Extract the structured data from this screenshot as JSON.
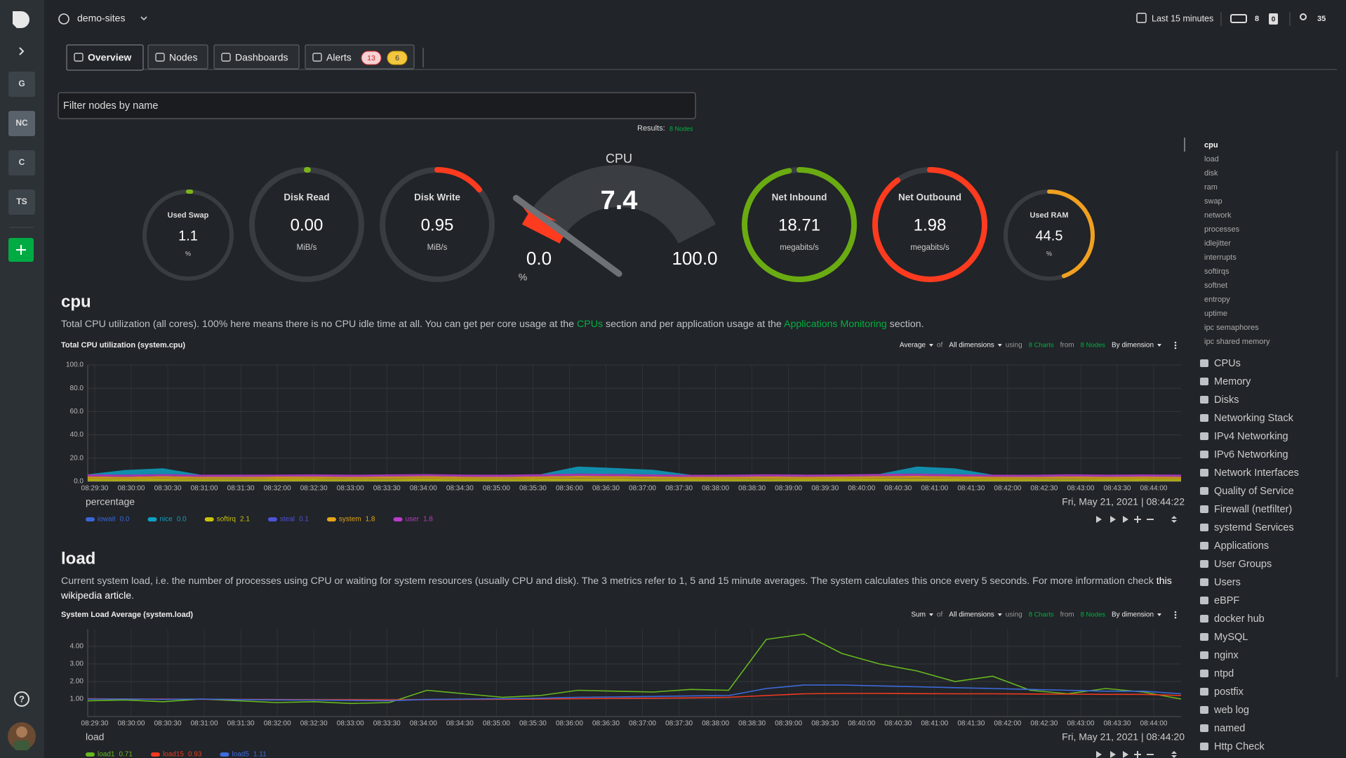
{
  "sidebar": {
    "spaces": [
      "G",
      "NC",
      "C",
      "TS"
    ],
    "help": "?"
  },
  "topbar": {
    "space": "demo-sites",
    "time_range": "Last 15 minutes",
    "nodes_count": "8",
    "alerts_count": "0",
    "users_count": "35"
  },
  "tabs": [
    {
      "label": "Overview"
    },
    {
      "label": "Nodes"
    },
    {
      "label": "Dashboards"
    },
    {
      "label": "Alerts",
      "badges": [
        "13",
        "6"
      ]
    }
  ],
  "filter": {
    "placeholder": "Filter nodes by name",
    "results_label": "Results:",
    "results_value": "8 Nodes"
  },
  "gauges": [
    {
      "title": "Used Swap",
      "value": "1.1",
      "unit": "%",
      "fill": 0.011,
      "color": "#7cb518"
    },
    {
      "title": "Disk Read",
      "value": "0.00",
      "unit": "MiB/s",
      "fill": 0.004,
      "color": "#7cb518"
    },
    {
      "title": "Disk Write",
      "value": "0.95",
      "unit": "MiB/s",
      "fill": 0.14,
      "color": "#ff3b1f"
    },
    {
      "title": "Net Inbound",
      "value": "18.71",
      "unit": "megabits/s",
      "fill": 0.97,
      "color": "#6aab12"
    },
    {
      "title": "Net Outbound",
      "value": "1.98",
      "unit": "megabits/s",
      "fill": 0.9,
      "color": "#ff3b1f"
    },
    {
      "title": "Used RAM",
      "value": "44.5",
      "unit": "%",
      "fill": 0.445,
      "color": "#f0a020"
    }
  ],
  "cpu_gauge": {
    "title": "CPU",
    "value": "7.4",
    "min": "0.0",
    "max": "100.0",
    "unit": "%",
    "color": "#ff3b1f"
  },
  "sections": [
    {
      "heading": "cpu",
      "description": [
        [
          {
            "text": "Total CPU utilization (all cores). 100% here means there is no CPU idle time at all. You can get per core usage at the ",
            "color": "#bfc3c7"
          },
          {
            "text": "CPUs",
            "color": "#00b140"
          },
          {
            "text": " section and per application usage at the ",
            "color": "#bfc3c7"
          },
          {
            "text": "Applications Monitoring",
            "color": "#00b140"
          },
          {
            "text": " section.",
            "color": "#bfc3c7"
          }
        ]
      ],
      "chart": {
        "type": "area",
        "title": "Total CPU utilization (system.cpu)",
        "controls": [
          {
            "text": "Average",
            "kind": "dropdown"
          },
          {
            "text": "of",
            "kind": "word"
          },
          {
            "text": "All dimensions",
            "kind": "dropdown"
          },
          {
            "text": "using",
            "kind": "word"
          },
          {
            "text": "8 Charts",
            "kind": "link"
          },
          {
            "text": "from",
            "kind": "word"
          },
          {
            "text": "8 Nodes",
            "kind": "link"
          },
          {
            "text": "By dimension",
            "kind": "dropdown"
          }
        ],
        "x": [
          "08:29:30",
          "08:30:00",
          "08:30:30",
          "08:31:00",
          "08:31:30",
          "08:32:00",
          "08:32:30",
          "08:33:00",
          "08:33:30",
          "08:34:00",
          "08:34:30",
          "08:35:00",
          "08:35:30",
          "08:36:00",
          "08:36:30",
          "08:37:00",
          "08:37:30",
          "08:38:00",
          "08:38:30",
          "08:39:00",
          "08:39:30",
          "08:40:00",
          "08:40:30",
          "08:41:00",
          "08:41:30",
          "08:42:00",
          "08:42:30",
          "08:43:00",
          "08:43:30",
          "08:44:00"
        ],
        "ylim": [
          0,
          100
        ],
        "yticks": [
          {
            "value": 0,
            "label": "0.0"
          },
          {
            "value": 20,
            "label": "20.0"
          },
          {
            "value": 40,
            "label": "40.0"
          },
          {
            "value": 60,
            "label": "60.0"
          },
          {
            "value": 80,
            "label": "80.0"
          },
          {
            "value": 100,
            "label": "100.0"
          }
        ],
        "y_label": "percentage",
        "timestamp": "Fri, May 21, 2021 | 08:44:22",
        "series": [
          {
            "name": "iowait",
            "color": "#3a66d6",
            "value_label": "0.0",
            "values": [
              0.1,
              0.1,
              0.1,
              0.1,
              0.1,
              0.1,
              0.1,
              0.1,
              0.1,
              0.1,
              0.1,
              0.1,
              0.1,
              0.1,
              0.1,
              0.1,
              0.1,
              0.1,
              0.1,
              0.1,
              0.1,
              0.1,
              0.1,
              0.1,
              0.1,
              0.1,
              0.1,
              0.1,
              0.1,
              0.1
            ]
          },
          {
            "name": "softirq",
            "color": "#c9c20a",
            "value_label": "2.1",
            "values": [
              2.3,
              2.1,
              2.4,
              2.0,
              2.2,
              2.1,
              2.3,
              2.0,
              2.2,
              2.4,
              2.1,
              2.0,
              2.3,
              2.5,
              2.4,
              2.2,
              2.1,
              2.0,
              2.2,
              2.1,
              2.3,
              2.4,
              2.5,
              2.3,
              2.1,
              2.0,
              2.2,
              2.1,
              2.3,
              2.1
            ]
          },
          {
            "name": "steal",
            "color": "#4e53d8",
            "value_label": "0.1",
            "values": [
              0.1,
              0.1,
              0.1,
              0.1,
              0.1,
              0.1,
              0.1,
              0.1,
              0.1,
              0.1,
              0.1,
              0.1,
              0.1,
              0.1,
              0.1,
              0.1,
              0.1,
              0.1,
              0.1,
              0.1,
              0.1,
              0.1,
              0.1,
              0.1,
              0.1,
              0.1,
              0.1,
              0.1,
              0.1,
              0.1
            ]
          },
          {
            "name": "system",
            "color": "#e3a51a",
            "value_label": "1.8",
            "values": [
              1.9,
              1.7,
              2.0,
              1.8,
              1.6,
              1.9,
              1.8,
              1.7,
              1.9,
              2.0,
              1.8,
              1.7,
              1.9,
              2.1,
              2.0,
              1.8,
              1.7,
              1.8,
              1.9,
              1.8,
              1.7,
              2.0,
              2.1,
              1.9,
              1.8,
              1.7,
              1.9,
              1.8,
              1.7,
              1.8
            ]
          },
          {
            "name": "user",
            "color": "#b93cc9",
            "value_label": "1.8",
            "values": [
              1.8,
              1.9,
              1.7,
              1.8,
              1.9,
              1.7,
              1.8,
              1.9,
              1.8,
              1.7,
              1.8,
              1.9,
              1.8,
              2.0,
              1.9,
              1.8,
              1.7,
              1.8,
              1.9,
              1.8,
              1.8,
              1.9,
              2.0,
              1.8,
              1.7,
              1.8,
              1.9,
              1.8,
              1.8,
              1.8
            ]
          },
          {
            "name": "nice",
            "color": "#0ea1c3",
            "value_label": "0.0",
            "values": [
              0,
              4,
              5,
              0,
              0,
              0,
              0,
              0,
              0,
              0,
              0,
              0,
              0,
              6,
              5,
              4,
              0,
              0,
              0,
              0,
              0,
              0,
              6,
              5,
              0,
              0,
              0,
              0,
              0,
              0
            ]
          }
        ]
      }
    },
    {
      "heading": "load",
      "description": [
        [
          {
            "text": "Current system load, i.e. the number of processes using CPU or waiting for system resources (usually CPU and disk). The 3 metrics refer to 1, 5 and 15 minute averages. The system calculates this once every 5 seconds. For more information check ",
            "color": "#bfc3c7"
          },
          {
            "text": "this",
            "color": "#ffffff"
          }
        ],
        [
          {
            "text": "wikipedia article",
            "color": "#ffffff"
          },
          {
            "text": ".",
            "color": "#bfc3c7"
          }
        ]
      ],
      "chart": {
        "type": "line",
        "title": "System Load Average (system.load)",
        "controls": [
          {
            "text": "Sum",
            "kind": "dropdown"
          },
          {
            "text": "of",
            "kind": "word"
          },
          {
            "text": "All dimensions",
            "kind": "dropdown"
          },
          {
            "text": "using",
            "kind": "word"
          },
          {
            "text": "8 Charts",
            "kind": "link"
          },
          {
            "text": "from",
            "kind": "word"
          },
          {
            "text": "8 Nodes",
            "kind": "link"
          },
          {
            "text": "By dimension",
            "kind": "dropdown"
          }
        ],
        "x": [
          "08:29:30",
          "08:30:00",
          "08:30:30",
          "08:31:00",
          "08:31:30",
          "08:32:00",
          "08:32:30",
          "08:33:00",
          "08:33:30",
          "08:34:00",
          "08:34:30",
          "08:35:00",
          "08:35:30",
          "08:36:00",
          "08:36:30",
          "08:37:00",
          "08:37:30",
          "08:38:00",
          "08:38:30",
          "08:39:00",
          "08:39:30",
          "08:40:00",
          "08:40:30",
          "08:41:00",
          "08:41:30",
          "08:42:00",
          "08:42:30",
          "08:43:00",
          "08:43:30",
          "08:44:00"
        ],
        "ylim": [
          0,
          5
        ],
        "yticks": [
          {
            "value": 1,
            "label": "1.00"
          },
          {
            "value": 2,
            "label": "2.00"
          },
          {
            "value": 3,
            "label": "3.00"
          },
          {
            "value": 4,
            "label": "4.00"
          }
        ],
        "y_label": "load",
        "timestamp": "Fri, May 21, 2021 | 08:44:20",
        "series": [
          {
            "name": "load1",
            "color": "#66b81f",
            "value_label": "0.71",
            "values": [
              0.9,
              0.95,
              0.85,
              1.0,
              0.9,
              0.8,
              0.85,
              0.75,
              0.8,
              1.5,
              1.3,
              1.1,
              1.2,
              1.5,
              1.45,
              1.4,
              1.55,
              1.5,
              4.4,
              4.7,
              3.6,
              3.0,
              2.6,
              2.0,
              2.3,
              1.5,
              1.3,
              1.6,
              1.4,
              1.0
            ]
          },
          {
            "name": "load15",
            "color": "#f03a20",
            "value_label": "0.93",
            "values": [
              1.02,
              1.0,
              1.0,
              0.99,
              0.98,
              0.97,
              0.96,
              0.96,
              0.95,
              0.97,
              0.98,
              0.99,
              1.0,
              1.02,
              1.04,
              1.05,
              1.07,
              1.1,
              1.2,
              1.3,
              1.32,
              1.32,
              1.31,
              1.3,
              1.3,
              1.29,
              1.28,
              1.27,
              1.27,
              1.2
            ]
          },
          {
            "name": "load5",
            "color": "#3d6be0",
            "value_label": "1.11",
            "values": [
              1.0,
              1.0,
              0.98,
              1.0,
              0.97,
              0.95,
              0.94,
              0.92,
              0.9,
              0.98,
              1.0,
              1.02,
              1.05,
              1.1,
              1.12,
              1.15,
              1.18,
              1.2,
              1.6,
              1.8,
              1.8,
              1.75,
              1.7,
              1.65,
              1.6,
              1.55,
              1.5,
              1.45,
              1.45,
              1.3
            ]
          }
        ]
      }
    }
  ],
  "nav": {
    "menu": [
      "cpu",
      "load",
      "disk",
      "ram",
      "swap",
      "network",
      "processes",
      "idlejitter",
      "interrupts",
      "softirqs",
      "softnet",
      "entropy",
      "uptime",
      "ipc semaphores",
      "ipc shared memory"
    ],
    "sections": [
      "CPUs",
      "Memory",
      "Disks",
      "Networking Stack",
      "IPv4 Networking",
      "IPv6 Networking",
      "Network Interfaces",
      "Quality of Service",
      "Firewall (netfilter)",
      "systemd Services",
      "Applications",
      "User Groups",
      "Users",
      "eBPF",
      "docker hub",
      "MySQL",
      "nginx",
      "ntpd",
      "postfix",
      "web log",
      "named",
      "Http Check"
    ]
  }
}
